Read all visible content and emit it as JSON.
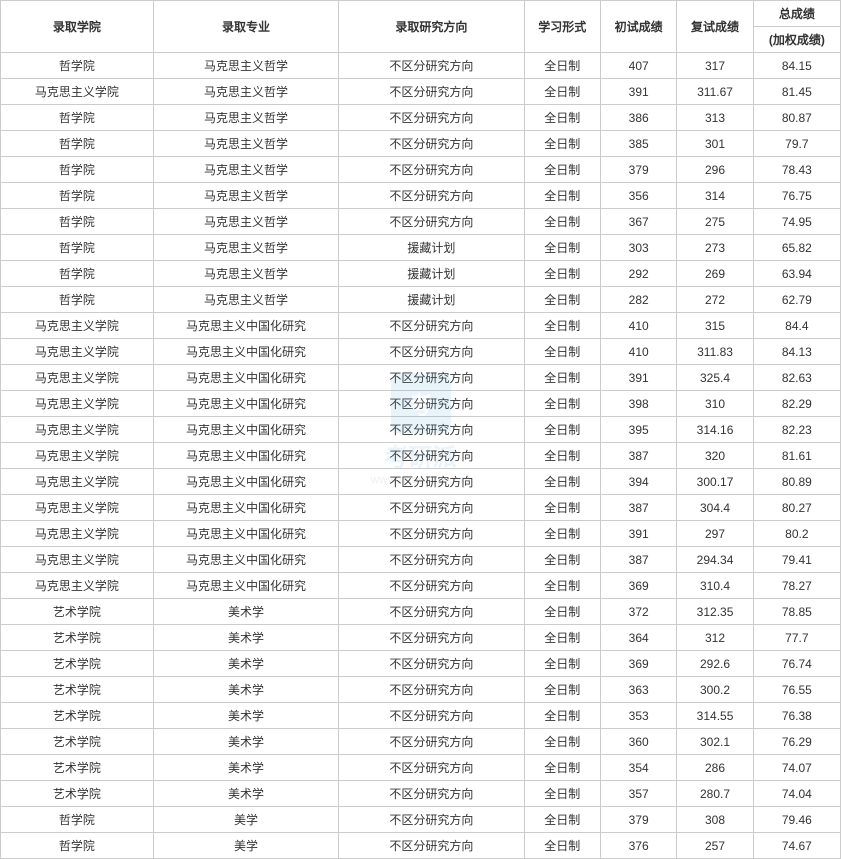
{
  "table": {
    "headers": {
      "college": "录取学院",
      "major": "录取专业",
      "direction": "录取研究方向",
      "form": "学习形式",
      "score1": "初试成绩",
      "score2": "复试成绩",
      "total_line1": "总成绩",
      "total_line2": "(加权成绩)"
    },
    "rows": [
      {
        "college": "哲学院",
        "major": "马克思主义哲学",
        "direction": "不区分研究方向",
        "form": "全日制",
        "score1": "407",
        "score2": "317",
        "total": "84.15"
      },
      {
        "college": "马克思主义学院",
        "major": "马克思主义哲学",
        "direction": "不区分研究方向",
        "form": "全日制",
        "score1": "391",
        "score2": "311.67",
        "total": "81.45"
      },
      {
        "college": "哲学院",
        "major": "马克思主义哲学",
        "direction": "不区分研究方向",
        "form": "全日制",
        "score1": "386",
        "score2": "313",
        "total": "80.87"
      },
      {
        "college": "哲学院",
        "major": "马克思主义哲学",
        "direction": "不区分研究方向",
        "form": "全日制",
        "score1": "385",
        "score2": "301",
        "total": "79.7"
      },
      {
        "college": "哲学院",
        "major": "马克思主义哲学",
        "direction": "不区分研究方向",
        "form": "全日制",
        "score1": "379",
        "score2": "296",
        "total": "78.43"
      },
      {
        "college": "哲学院",
        "major": "马克思主义哲学",
        "direction": "不区分研究方向",
        "form": "全日制",
        "score1": "356",
        "score2": "314",
        "total": "76.75"
      },
      {
        "college": "哲学院",
        "major": "马克思主义哲学",
        "direction": "不区分研究方向",
        "form": "全日制",
        "score1": "367",
        "score2": "275",
        "total": "74.95"
      },
      {
        "college": "哲学院",
        "major": "马克思主义哲学",
        "direction": "援藏计划",
        "form": "全日制",
        "score1": "303",
        "score2": "273",
        "total": "65.82"
      },
      {
        "college": "哲学院",
        "major": "马克思主义哲学",
        "direction": "援藏计划",
        "form": "全日制",
        "score1": "292",
        "score2": "269",
        "total": "63.94"
      },
      {
        "college": "哲学院",
        "major": "马克思主义哲学",
        "direction": "援藏计划",
        "form": "全日制",
        "score1": "282",
        "score2": "272",
        "total": "62.79"
      },
      {
        "college": "马克思主义学院",
        "major": "马克思主义中国化研究",
        "direction": "不区分研究方向",
        "form": "全日制",
        "score1": "410",
        "score2": "315",
        "total": "84.4"
      },
      {
        "college": "马克思主义学院",
        "major": "马克思主义中国化研究",
        "direction": "不区分研究方向",
        "form": "全日制",
        "score1": "410",
        "score2": "311.83",
        "total": "84.13"
      },
      {
        "college": "马克思主义学院",
        "major": "马克思主义中国化研究",
        "direction": "不区分研究方向",
        "form": "全日制",
        "score1": "391",
        "score2": "325.4",
        "total": "82.63"
      },
      {
        "college": "马克思主义学院",
        "major": "马克思主义中国化研究",
        "direction": "不区分研究方向",
        "form": "全日制",
        "score1": "398",
        "score2": "310",
        "total": "82.29"
      },
      {
        "college": "马克思主义学院",
        "major": "马克思主义中国化研究",
        "direction": "不区分研究方向",
        "form": "全日制",
        "score1": "395",
        "score2": "314.16",
        "total": "82.23"
      },
      {
        "college": "马克思主义学院",
        "major": "马克思主义中国化研究",
        "direction": "不区分研究方向",
        "form": "全日制",
        "score1": "387",
        "score2": "320",
        "total": "81.61"
      },
      {
        "college": "马克思主义学院",
        "major": "马克思主义中国化研究",
        "direction": "不区分研究方向",
        "form": "全日制",
        "score1": "394",
        "score2": "300.17",
        "total": "80.89"
      },
      {
        "college": "马克思主义学院",
        "major": "马克思主义中国化研究",
        "direction": "不区分研究方向",
        "form": "全日制",
        "score1": "387",
        "score2": "304.4",
        "total": "80.27"
      },
      {
        "college": "马克思主义学院",
        "major": "马克思主义中国化研究",
        "direction": "不区分研究方向",
        "form": "全日制",
        "score1": "391",
        "score2": "297",
        "total": "80.2"
      },
      {
        "college": "马克思主义学院",
        "major": "马克思主义中国化研究",
        "direction": "不区分研究方向",
        "form": "全日制",
        "score1": "387",
        "score2": "294.34",
        "total": "79.41"
      },
      {
        "college": "马克思主义学院",
        "major": "马克思主义中国化研究",
        "direction": "不区分研究方向",
        "form": "全日制",
        "score1": "369",
        "score2": "310.4",
        "total": "78.27"
      },
      {
        "college": "艺术学院",
        "major": "美术学",
        "direction": "不区分研究方向",
        "form": "全日制",
        "score1": "372",
        "score2": "312.35",
        "total": "78.85"
      },
      {
        "college": "艺术学院",
        "major": "美术学",
        "direction": "不区分研究方向",
        "form": "全日制",
        "score1": "364",
        "score2": "312",
        "total": "77.7"
      },
      {
        "college": "艺术学院",
        "major": "美术学",
        "direction": "不区分研究方向",
        "form": "全日制",
        "score1": "369",
        "score2": "292.6",
        "total": "76.74"
      },
      {
        "college": "艺术学院",
        "major": "美术学",
        "direction": "不区分研究方向",
        "form": "全日制",
        "score1": "363",
        "score2": "300.2",
        "total": "76.55"
      },
      {
        "college": "艺术学院",
        "major": "美术学",
        "direction": "不区分研究方向",
        "form": "全日制",
        "score1": "353",
        "score2": "314.55",
        "total": "76.38"
      },
      {
        "college": "艺术学院",
        "major": "美术学",
        "direction": "不区分研究方向",
        "form": "全日制",
        "score1": "360",
        "score2": "302.1",
        "total": "76.29"
      },
      {
        "college": "艺术学院",
        "major": "美术学",
        "direction": "不区分研究方向",
        "form": "全日制",
        "score1": "354",
        "score2": "286",
        "total": "74.07"
      },
      {
        "college": "艺术学院",
        "major": "美术学",
        "direction": "不区分研究方向",
        "form": "全日制",
        "score1": "357",
        "score2": "280.7",
        "total": "74.04"
      },
      {
        "college": "哲学院",
        "major": "美学",
        "direction": "不区分研究方向",
        "form": "全日制",
        "score1": "379",
        "score2": "308",
        "total": "79.46"
      },
      {
        "college": "哲学院",
        "major": "美学",
        "direction": "不区分研究方向",
        "form": "全日制",
        "score1": "376",
        "score2": "257",
        "total": "74.67"
      }
    ]
  },
  "watermark": {
    "logo_text": "考",
    "brand": "考研派",
    "url": "www.okaoyan.com"
  }
}
